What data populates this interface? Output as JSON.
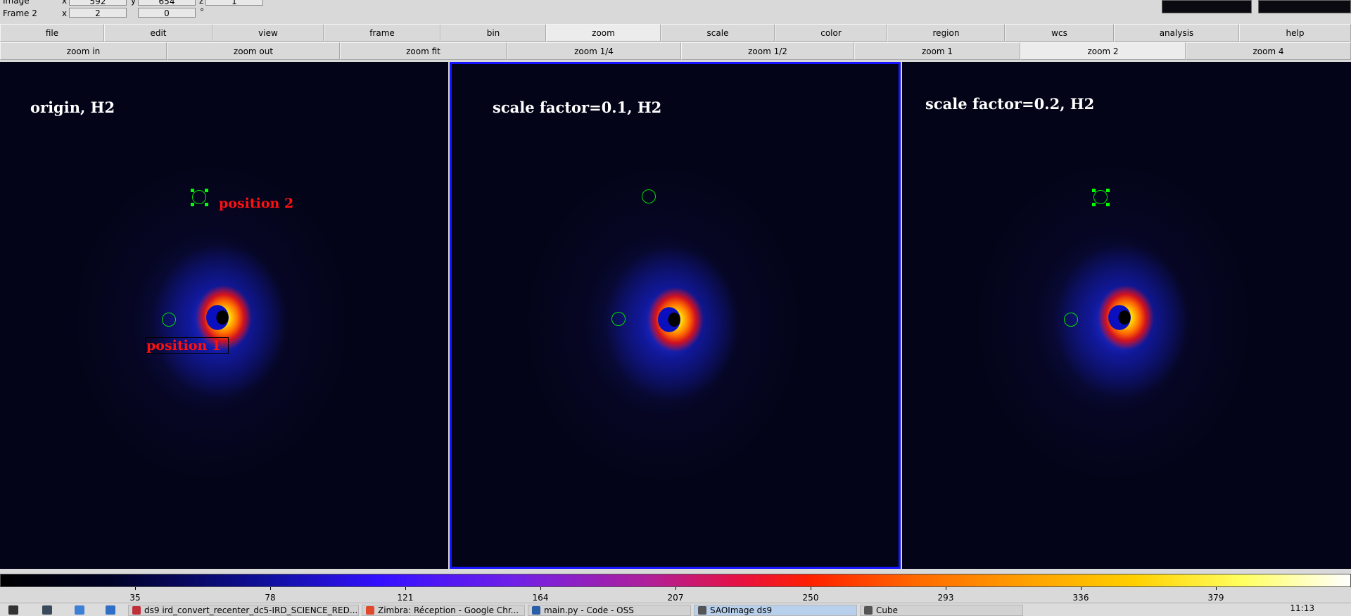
{
  "window": {
    "title": "SAOImage ds9"
  },
  "info": {
    "row1_label": "Image",
    "row1_x_label": "x",
    "row1_x_value": "592",
    "row1_y_label": "y",
    "row1_y_value": "654",
    "row1_z_label": "z",
    "row1_z_value": "1",
    "row2_label": "Frame 2",
    "row2_x_label": "x",
    "row2_x_value": "2",
    "row2_angle_value": "0",
    "row2_angle_unit": "°"
  },
  "menubar": {
    "items": [
      "file",
      "edit",
      "view",
      "frame",
      "bin",
      "zoom",
      "scale",
      "color",
      "region",
      "wcs",
      "analysis",
      "help"
    ],
    "active": "zoom"
  },
  "zoombar": {
    "items": [
      "zoom in",
      "zoom out",
      "zoom fit",
      "zoom 1/4",
      "zoom 1/2",
      "zoom 1",
      "zoom 2",
      "zoom 4"
    ],
    "active": "zoom 2"
  },
  "frames": [
    {
      "label": "origin, H2",
      "current": false,
      "region_labels": [
        "position 2",
        "position 1"
      ]
    },
    {
      "label": "scale factor=0.1, H2",
      "current": true
    },
    {
      "label": "scale factor=0.2, H2",
      "current": false
    }
  ],
  "colorbar": {
    "colormap": "heat-like",
    "ticks": [
      "35",
      "78",
      "121",
      "164",
      "207",
      "250",
      "293",
      "336",
      "379"
    ]
  },
  "taskbar": {
    "tasks": [
      {
        "label": "ds9 ird_convert_recenter_dc5-IRD_SCIENCE_RED...",
        "color": "#c0303a"
      },
      {
        "label": "Zimbra: Réception - Google Chr...",
        "color": "#e04a2a"
      },
      {
        "label": "main.py - Code - OSS",
        "color": "#2a5fa8"
      },
      {
        "label": "SAOImage ds9",
        "color": "#555555",
        "active": true
      },
      {
        "label": "Cube",
        "color": "#555555"
      }
    ],
    "clock": "11:13"
  },
  "colors": {
    "region_green": "#00dd00",
    "region_label_red": "#ff1010",
    "current_frame_border": "#1515ff",
    "frame_background": "#040418"
  }
}
